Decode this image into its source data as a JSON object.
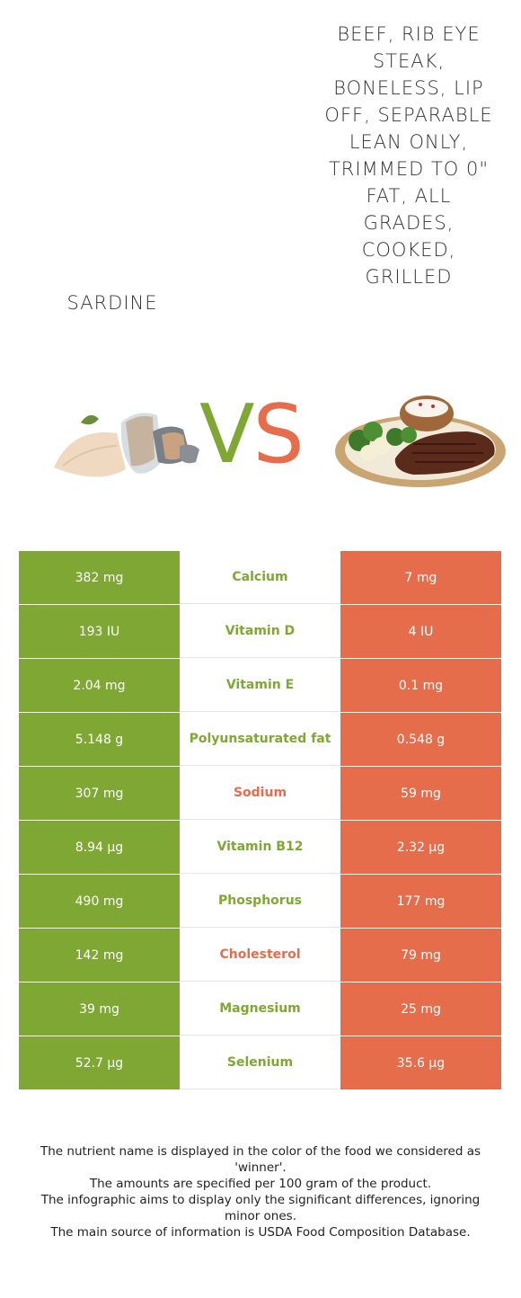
{
  "foods": {
    "left": {
      "name": "Sardine",
      "image_icon": "sardine-photo"
    },
    "right": {
      "name": "Beef, rib eye steak, boneless, lip off, separable lean only, trimmed to 0\" fat, all grades, cooked, grilled",
      "image_icon": "steak-plate-photo"
    }
  },
  "vs": {
    "v": "V",
    "s": "S"
  },
  "colors": {
    "left": "#7fa733",
    "right": "#e56d4b"
  },
  "rows": [
    {
      "left": "382 mg",
      "nutrient": "Calcium",
      "right": "7 mg",
      "winner": "left"
    },
    {
      "left": "193 IU",
      "nutrient": "Vitamin D",
      "right": "4 IU",
      "winner": "left"
    },
    {
      "left": "2.04 mg",
      "nutrient": "Vitamin E",
      "right": "0.1 mg",
      "winner": "left"
    },
    {
      "left": "5.148 g",
      "nutrient": "Polyunsaturated fat",
      "right": "0.548 g",
      "winner": "left"
    },
    {
      "left": "307 mg",
      "nutrient": "Sodium",
      "right": "59 mg",
      "winner": "right"
    },
    {
      "left": "8.94 µg",
      "nutrient": "Vitamin B12",
      "right": "2.32 µg",
      "winner": "left"
    },
    {
      "left": "490 mg",
      "nutrient": "Phosphorus",
      "right": "177 mg",
      "winner": "left"
    },
    {
      "left": "142 mg",
      "nutrient": "Cholesterol",
      "right": "79 mg",
      "winner": "right"
    },
    {
      "left": "39 mg",
      "nutrient": "Magnesium",
      "right": "25 mg",
      "winner": "left"
    },
    {
      "left": "52.7 µg",
      "nutrient": "Selenium",
      "right": "35.6 µg",
      "winner": "left"
    }
  ],
  "footer": [
    "The nutrient name is displayed in the color of the food we considered as 'winner'.",
    "The amounts are specified per 100 gram of the product.",
    "The infographic aims to display only the significant differences, ignoring minor ones.",
    "The main source of information is USDA Food Composition Database."
  ]
}
